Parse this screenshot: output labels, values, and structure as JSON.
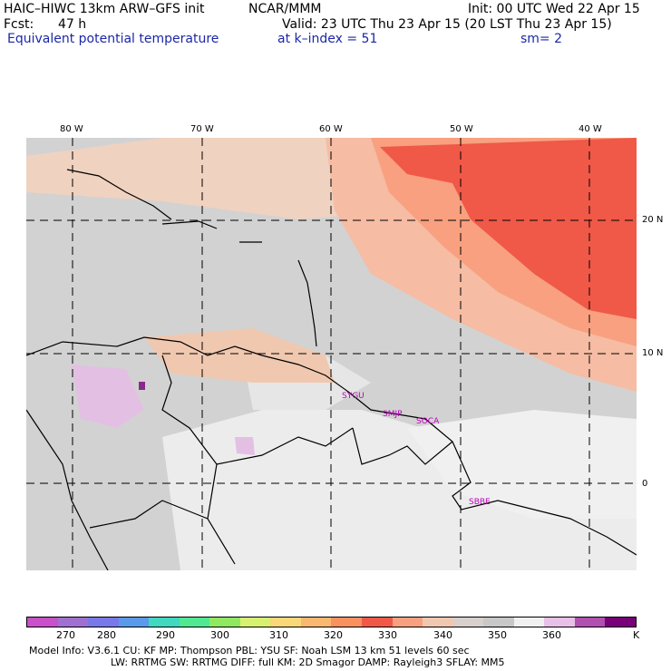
{
  "header": {
    "model_line": "HAIC–HIWC 13km ARW–GFS init",
    "center": "NCAR/MMM",
    "init": "Init: 00 UTC Wed 22 Apr 15",
    "fcst_label": "Fcst:",
    "fcst_value": "47 h",
    "valid": "Valid: 23 UTC Thu 23 Apr 15 (20 LST Thu 23 Apr 15)",
    "field": "Equivalent potential temperature",
    "level": "at k–index =  51",
    "smoothing": "sm= 2"
  },
  "map": {
    "lon_labels": [
      "80 W",
      "70 W",
      "60 W",
      "50 W",
      "40 W"
    ],
    "lat_labels": [
      "20 N",
      "10 N",
      "0"
    ],
    "stations": [
      "SYGU",
      "SMJP",
      "SOCA",
      "SBBE"
    ]
  },
  "colorbar": {
    "ticks": [
      "270",
      "280",
      "290",
      "300",
      "310",
      "320",
      "330",
      "340",
      "350",
      "360",
      "K"
    ],
    "colors": [
      "#c850c8",
      "#a070d0",
      "#7878e8",
      "#5a9ae8",
      "#40d8c0",
      "#50e890",
      "#90e860",
      "#d8f070",
      "#f8d878",
      "#f8b870",
      "#f89060",
      "#f05848",
      "#f8a080",
      "#f0c8b0",
      "#d8d0cc",
      "#c8c8c8",
      "#f0f0f0",
      "#e8c0e8",
      "#b050b0",
      "#780078"
    ]
  },
  "footer": {
    "line1": "Model Info: V3.6.1    CU: KF      MP: Thompson    PBL: YSU      SF: Noah LSM      13 km    51 levels    60 sec",
    "line2": "LW: RRTMG    SW: RRTMG   DIFF: full    KM: 2D Smagor DAMP: Rayleigh3  SFLAY: MM5"
  }
}
